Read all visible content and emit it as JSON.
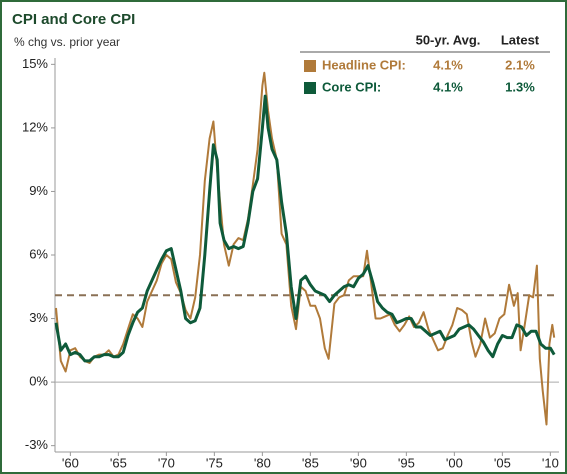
{
  "chart_data": {
    "type": "line",
    "title": "CPI and Core CPI",
    "subtitle": "% chg vs. prior year",
    "legend_columns": [
      "50-yr. Avg.",
      "Latest"
    ],
    "legend": "top-right",
    "xlim": [
      1958.4,
      2010.9
    ],
    "ylim": [
      -3.3,
      15.3
    ],
    "xticks": [
      {
        "value": 1960,
        "label": "'60"
      },
      {
        "value": 1965,
        "label": "'65"
      },
      {
        "value": 1970,
        "label": "'70"
      },
      {
        "value": 1975,
        "label": "'75"
      },
      {
        "value": 1980,
        "label": "'80"
      },
      {
        "value": 1985,
        "label": "'85"
      },
      {
        "value": 1990,
        "label": "'90"
      },
      {
        "value": 1995,
        "label": "'95"
      },
      {
        "value": 2000,
        "label": "'00"
      },
      {
        "value": 2005,
        "label": "'05"
      },
      {
        "value": 2010,
        "label": "'10"
      }
    ],
    "yticks": [
      {
        "value": 15,
        "label": "15%"
      },
      {
        "value": 12,
        "label": "12%"
      },
      {
        "value": 9,
        "label": "9%"
      },
      {
        "value": 6,
        "label": "6%"
      },
      {
        "value": 3,
        "label": "3%"
      },
      {
        "value": 0,
        "label": "0%"
      },
      {
        "value": -3,
        "label": "-3%"
      }
    ],
    "zero_line": true,
    "series": [
      {
        "name": "Headline CPI:",
        "color": "#b07a3a",
        "average": 4.1,
        "average_label": "4.1%",
        "latest": 2.1,
        "latest_label": "2.1%",
        "x": [
          1958.5,
          1959,
          1959.5,
          1960,
          1960.5,
          1961,
          1961.5,
          1962,
          1962.5,
          1963,
          1963.5,
          1964,
          1964.5,
          1965,
          1965.5,
          1966,
          1966.5,
          1967,
          1967.5,
          1968,
          1968.5,
          1969,
          1969.5,
          1970,
          1970.5,
          1971,
          1971.5,
          1972,
          1972.5,
          1973,
          1973.5,
          1974,
          1974.5,
          1974.9,
          1975.3,
          1975.6,
          1976,
          1976.5,
          1977,
          1977.5,
          1978,
          1978.5,
          1979,
          1979.5,
          1980,
          1980.2,
          1980.6,
          1981,
          1981.5,
          1982,
          1982.5,
          1983,
          1983.5,
          1984,
          1984.5,
          1985,
          1985.5,
          1986,
          1986.5,
          1986.9,
          1987.5,
          1988,
          1988.5,
          1989,
          1989.5,
          1990,
          1990.5,
          1990.9,
          1991.3,
          1991.8,
          1992.3,
          1992.8,
          1993.3,
          1993.8,
          1994.3,
          1994.8,
          1995.3,
          1995.8,
          1996.3,
          1996.8,
          1997.3,
          1997.8,
          1998.3,
          1998.8,
          1999.3,
          1999.8,
          2000.3,
          2000.8,
          2001.3,
          2001.8,
          2002.2,
          2002.7,
          2003.2,
          2003.7,
          2004.2,
          2004.7,
          2005.2,
          2005.7,
          2006.2,
          2006.6,
          2006.9,
          2007.3,
          2007.8,
          2008.2,
          2008.6,
          2008.9,
          2009.2,
          2009.6,
          2009.9,
          2010.2,
          2010.4
        ],
        "values": [
          3.5,
          1.0,
          0.5,
          1.5,
          1.6,
          1.2,
          1.0,
          0.9,
          1.2,
          1.3,
          1.3,
          1.5,
          1.2,
          1.3,
          1.8,
          2.5,
          3.2,
          3.0,
          2.6,
          3.8,
          4.3,
          4.8,
          5.6,
          6.0,
          5.8,
          4.7,
          4.2,
          3.4,
          3.0,
          4.0,
          6.0,
          9.5,
          11.5,
          12.3,
          10.0,
          8.5,
          6.5,
          5.5,
          6.5,
          6.8,
          6.7,
          7.7,
          9.3,
          11.0,
          14.0,
          14.6,
          12.8,
          11.5,
          10.5,
          7.0,
          6.5,
          3.6,
          2.5,
          4.5,
          4.3,
          3.6,
          3.6,
          3.0,
          1.6,
          1.1,
          3.7,
          4.0,
          4.1,
          4.8,
          5.0,
          5.0,
          5.0,
          6.2,
          4.8,
          3.0,
          3.0,
          3.1,
          3.2,
          2.7,
          2.4,
          2.7,
          3.1,
          2.6,
          2.8,
          3.3,
          2.5,
          2.0,
          1.5,
          1.6,
          2.2,
          2.7,
          3.5,
          3.4,
          3.2,
          1.9,
          1.2,
          1.8,
          3.0,
          2.1,
          2.3,
          3.0,
          3.2,
          4.6,
          3.6,
          4.2,
          1.5,
          2.6,
          4.1,
          4.0,
          5.5,
          1.1,
          -0.4,
          -2.0,
          1.8,
          2.7,
          2.1
        ]
      },
      {
        "name": "Core CPI:",
        "color": "#0e5a3a",
        "average": 4.1,
        "average_label": "4.1%",
        "latest": 1.3,
        "latest_label": "1.3%",
        "x": [
          1958.5,
          1959,
          1959.5,
          1960,
          1960.5,
          1961,
          1961.5,
          1962,
          1962.5,
          1963,
          1963.5,
          1964,
          1964.5,
          1965,
          1965.5,
          1966,
          1966.5,
          1967,
          1967.5,
          1968,
          1968.5,
          1969,
          1969.5,
          1970,
          1970.5,
          1971,
          1971.5,
          1972,
          1972.5,
          1973,
          1973.5,
          1974,
          1974.5,
          1974.9,
          1975.3,
          1975.6,
          1976,
          1976.5,
          1977,
          1977.5,
          1978,
          1978.5,
          1979,
          1979.5,
          1980,
          1980.3,
          1980.6,
          1981,
          1981.5,
          1982,
          1982.5,
          1983,
          1983.5,
          1984,
          1984.5,
          1985,
          1985.5,
          1986,
          1986.5,
          1987,
          1987.5,
          1988,
          1988.5,
          1989,
          1989.5,
          1990,
          1990.5,
          1991,
          1991.5,
          1992,
          1992.5,
          1993,
          1993.5,
          1994,
          1994.5,
          1995,
          1995.5,
          1996,
          1996.5,
          1997,
          1997.5,
          1998,
          1998.5,
          1999,
          1999.5,
          2000,
          2000.5,
          2001,
          2001.5,
          2002,
          2002.5,
          2003,
          2003.5,
          2004,
          2004.5,
          2005,
          2005.5,
          2006,
          2006.5,
          2007,
          2007.5,
          2008,
          2008.5,
          2009,
          2009.5,
          2010,
          2010.4
        ],
        "values": [
          2.8,
          1.5,
          1.8,
          1.3,
          1.4,
          1.3,
          1.0,
          1.0,
          1.2,
          1.2,
          1.3,
          1.3,
          1.2,
          1.2,
          1.4,
          2.2,
          2.8,
          3.3,
          3.5,
          4.3,
          4.8,
          5.3,
          5.8,
          6.2,
          6.3,
          5.3,
          4.3,
          3.0,
          2.8,
          2.9,
          3.5,
          6.0,
          9.0,
          11.2,
          10.5,
          7.5,
          6.7,
          6.3,
          6.4,
          6.3,
          6.4,
          7.5,
          9.0,
          9.6,
          12.0,
          13.5,
          12.0,
          11.0,
          10.5,
          8.5,
          7.0,
          4.5,
          3.0,
          4.8,
          5.0,
          4.6,
          4.3,
          4.2,
          4.1,
          3.8,
          4.1,
          4.3,
          4.5,
          4.6,
          4.5,
          4.9,
          5.1,
          5.5,
          4.7,
          3.8,
          3.5,
          3.3,
          3.2,
          2.8,
          2.9,
          3.0,
          3.0,
          2.6,
          2.6,
          2.4,
          2.2,
          2.3,
          2.4,
          2.0,
          2.1,
          2.2,
          2.5,
          2.6,
          2.7,
          2.5,
          2.2,
          1.9,
          1.5,
          1.2,
          1.8,
          2.2,
          2.1,
          2.1,
          2.7,
          2.6,
          2.2,
          2.4,
          2.4,
          1.8,
          1.6,
          1.6,
          1.3
        ]
      }
    ]
  }
}
